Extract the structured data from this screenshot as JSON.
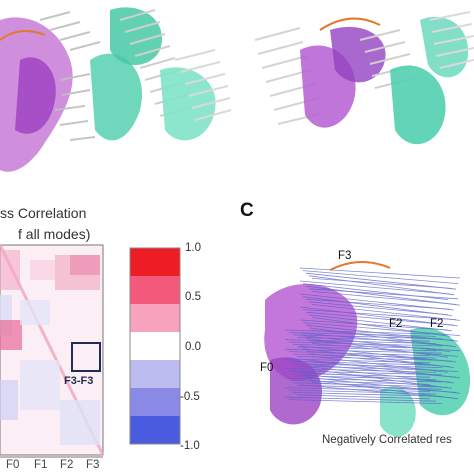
{
  "figure": {
    "panel_c_letter": "C",
    "cross_correlation_title_line1": "ss Correlation",
    "cross_correlation_title_line2": "f all modes)",
    "negatively_correlated_label": "Negatively Correlated res",
    "highlight_box_label": "F3-F3",
    "axis_ticks": [
      "F0",
      "F1",
      "F2",
      "F3"
    ],
    "colorbar_ticks": [
      "1.0",
      "0.5",
      "0.0",
      "-0.5",
      "-1.0"
    ],
    "structure_labels": {
      "f3": "F3",
      "f2_left": "F2",
      "f2_right": "F2",
      "f0": "F0"
    },
    "colorbar_colors": [
      "#ee1c24",
      "#f2597a",
      "#f7a3bd",
      "#ffffff",
      "#bcbcf0",
      "#8a8ae6",
      "#4b5be0"
    ]
  }
}
